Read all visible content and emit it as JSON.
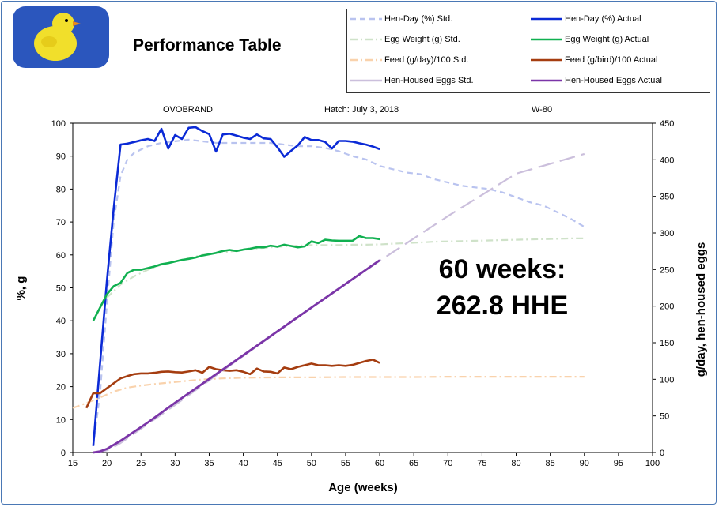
{
  "header": {
    "title": "Performance Table",
    "brand": "OVOBRAND",
    "hatch": "Hatch:  July 3, 2018",
    "flock": "W-80"
  },
  "annotation": {
    "line1": "60 weeks:",
    "line2": "262.8 HHE"
  },
  "legend": [
    {
      "label": "Hen-Day (%) Std.",
      "color": "#b9c3ef",
      "style": "dashed"
    },
    {
      "label": "Hen-Day (%) Actual",
      "color": "#0b2ad6",
      "style": "solid"
    },
    {
      "label": "Egg Weight (g) Std.",
      "color": "#cfe2c9",
      "style": "dashdot"
    },
    {
      "label": "Egg Weight (g) Actual",
      "color": "#10b050",
      "style": "solid"
    },
    {
      "label": "Feed (g/day)/100 Std.",
      "color": "#f9d2ac",
      "style": "dashdot"
    },
    {
      "label": "Feed (g/bird)/100 Actual",
      "color": "#a53d10",
      "style": "solid"
    },
    {
      "label": "Hen-Housed Eggs Std.",
      "color": "#cbbfdc",
      "style": "longdash"
    },
    {
      "label": "Hen-Housed Eggs Actual",
      "color": "#7b35a8",
      "style": "solid"
    }
  ],
  "chart_data": {
    "type": "line",
    "xlabel": "Age (weeks)",
    "ylabel": "%, g",
    "y2label": "g/day, hen-housed eggs",
    "xlim": [
      15,
      100
    ],
    "ylim": [
      0,
      100
    ],
    "y2lim": [
      0,
      450
    ],
    "xticks": [
      "15",
      "20",
      "25",
      "30",
      "35",
      "40",
      "45",
      "50",
      "55",
      "60",
      "65",
      "70",
      "75",
      "80",
      "85",
      "90",
      "95",
      "100"
    ],
    "yticks": [
      "0",
      "10",
      "20",
      "30",
      "40",
      "50",
      "60",
      "70",
      "80",
      "90",
      "100"
    ],
    "y2ticks": [
      "0",
      "50",
      "100",
      "150",
      "200",
      "250",
      "300",
      "350",
      "400",
      "450"
    ],
    "series": [
      {
        "name": "Hen-Day (%) Std.",
        "axis": "left",
        "color": "#b9c3ef",
        "dash": "7,5",
        "width": 2.2,
        "x": [
          18,
          19,
          20,
          21,
          22,
          23,
          24,
          25,
          26,
          28,
          30,
          32,
          34,
          36,
          38,
          40,
          42,
          44,
          46,
          48,
          50,
          52,
          54,
          56,
          58,
          60,
          62,
          64,
          66,
          68,
          70,
          72,
          74,
          76,
          78,
          80,
          82,
          84,
          86,
          88,
          90
        ],
        "y": [
          2,
          18,
          45,
          70,
          84,
          89,
          91,
          92,
          93,
          94,
          94.5,
          95,
          94.5,
          94,
          94,
          94,
          94,
          94,
          93.5,
          93,
          93,
          92.5,
          91.5,
          90,
          89,
          87,
          86,
          85,
          84.5,
          83,
          82,
          81,
          80.5,
          80,
          79,
          77.5,
          76,
          75,
          73,
          71,
          68.5
        ]
      },
      {
        "name": "Hen-Day (%) Actual",
        "axis": "left",
        "color": "#0b2ad6",
        "dash": "",
        "width": 2.6,
        "x": [
          18,
          19,
          20,
          21,
          22,
          23,
          24,
          25,
          26,
          27,
          28,
          29,
          30,
          31,
          32,
          33,
          34,
          35,
          36,
          37,
          38,
          39,
          40,
          41,
          42,
          43,
          44,
          45,
          46,
          47,
          48,
          49,
          50,
          51,
          52,
          53,
          54,
          55,
          56,
          57,
          58,
          59,
          60
        ],
        "y": [
          2,
          27,
          52,
          74,
          93.5,
          93.8,
          94.3,
          94.8,
          95.2,
          94.6,
          98.3,
          92.3,
          96.4,
          95.2,
          98.6,
          98.8,
          97.6,
          96.7,
          91.4,
          96.6,
          96.8,
          96.2,
          95.6,
          95.2,
          96.6,
          95.4,
          95.2,
          92.7,
          89.8,
          91.6,
          93.3,
          95.8,
          94.9,
          94.9,
          94.3,
          92.3,
          94.6,
          94.6,
          94.4,
          93.9,
          93.5,
          92.9,
          92.1
        ]
      },
      {
        "name": "Egg Weight (g) Std.",
        "axis": "left",
        "color": "#cfe2c9",
        "dash": "9,4,2,4",
        "width": 2.2,
        "x": [
          20,
          22,
          24,
          26,
          28,
          30,
          32,
          34,
          36,
          38,
          40,
          42,
          44,
          46,
          48,
          50,
          52,
          54,
          56,
          58,
          60,
          62,
          64,
          66,
          68,
          70,
          72,
          74,
          76,
          78,
          80,
          82,
          84,
          86,
          88,
          90
        ],
        "y": [
          47,
          51,
          53.5,
          55.5,
          57,
          58,
          59,
          60,
          60.5,
          61,
          61.5,
          62,
          62.3,
          62.6,
          62.8,
          63,
          63,
          63,
          63.1,
          63.1,
          63.2,
          63.4,
          63.6,
          63.8,
          64,
          64.1,
          64.2,
          64.3,
          64.4,
          64.5,
          64.6,
          64.7,
          64.8,
          64.9,
          65,
          65
        ]
      },
      {
        "name": "Egg Weight (g) Actual",
        "axis": "left",
        "color": "#10b050",
        "dash": "",
        "width": 2.6,
        "x": [
          18,
          19,
          20,
          21,
          22,
          23,
          24,
          25,
          26,
          27,
          28,
          29,
          30,
          31,
          32,
          33,
          34,
          35,
          36,
          37,
          38,
          39,
          40,
          41,
          42,
          43,
          44,
          45,
          46,
          47,
          48,
          49,
          50,
          51,
          52,
          53,
          54,
          55,
          56,
          57,
          58,
          59,
          60
        ],
        "y": [
          40,
          44,
          48,
          50.5,
          51.5,
          54.5,
          55.5,
          55.5,
          56,
          56.5,
          57.2,
          57.5,
          58,
          58.5,
          58.8,
          59.2,
          59.8,
          60.2,
          60.6,
          61.2,
          61.5,
          61.2,
          61.6,
          61.9,
          62.3,
          62.3,
          62.8,
          62.5,
          63.1,
          62.7,
          62.3,
          62.6,
          64.1,
          63.6,
          64.6,
          64.4,
          64.3,
          64.3,
          64.3,
          65.7,
          65.1,
          65.1,
          64.8
        ]
      },
      {
        "name": "Feed (g/day)/100 Std.",
        "axis": "left",
        "color": "#f9d2ac",
        "dash": "9,4,2,4",
        "width": 2.2,
        "x": [
          15,
          17,
          19,
          21,
          23,
          25,
          27,
          29,
          31,
          33,
          35,
          37,
          40,
          45,
          50,
          55,
          60,
          65,
          70,
          75,
          80,
          85,
          90
        ],
        "y": [
          13.5,
          15,
          16.7,
          18.5,
          19.7,
          20.3,
          20.8,
          21.2,
          21.6,
          22,
          22.3,
          22.5,
          22.7,
          22.8,
          22.8,
          22.9,
          22.9,
          22.9,
          23,
          23,
          23,
          23,
          23
        ]
      },
      {
        "name": "Feed (g/bird)/100 Actual",
        "axis": "left",
        "color": "#a53d10",
        "dash": "",
        "width": 2.6,
        "x": [
          17,
          18,
          19,
          20,
          21,
          22,
          23,
          24,
          25,
          26,
          27,
          28,
          29,
          30,
          31,
          32,
          33,
          34,
          35,
          36,
          37,
          38,
          39,
          40,
          41,
          42,
          43,
          44,
          45,
          46,
          47,
          48,
          49,
          50,
          51,
          52,
          53,
          54,
          55,
          56,
          57,
          58,
          59,
          60
        ],
        "y": [
          13.5,
          18,
          18,
          19.5,
          21,
          22.5,
          23.2,
          23.8,
          24,
          24,
          24.2,
          24.5,
          24.6,
          24.4,
          24.3,
          24.6,
          25,
          24.2,
          26,
          25.3,
          25,
          24.8,
          25,
          24.5,
          23.8,
          25.5,
          24.6,
          24.5,
          24,
          25.8,
          25.3,
          26,
          26.5,
          27,
          26.5,
          26.5,
          26.3,
          26.5,
          26.3,
          26.6,
          27.2,
          27.8,
          28.2,
          27.2
        ]
      },
      {
        "name": "Hen-Housed Eggs Std.",
        "axis": "right",
        "color": "#cbbfdc",
        "dash": "20,8",
        "width": 2.2,
        "x": [
          18,
          19,
          20,
          21,
          22,
          24,
          26,
          30,
          40,
          50,
          60,
          70,
          80,
          90
        ],
        "y": [
          0,
          1,
          3,
          7.5,
          13,
          26,
          39,
          65,
          132,
          198,
          262,
          323,
          381,
          408
        ]
      },
      {
        "name": "Hen-Housed Eggs Actual",
        "axis": "right",
        "color": "#7b35a8",
        "dash": "",
        "width": 2.8,
        "x": [
          18,
          19,
          20,
          21,
          22,
          24,
          26,
          30,
          40,
          50,
          60
        ],
        "y": [
          0,
          1.5,
          5,
          10.5,
          16,
          28.5,
          41,
          68,
          133,
          198,
          262.8
        ]
      }
    ]
  }
}
